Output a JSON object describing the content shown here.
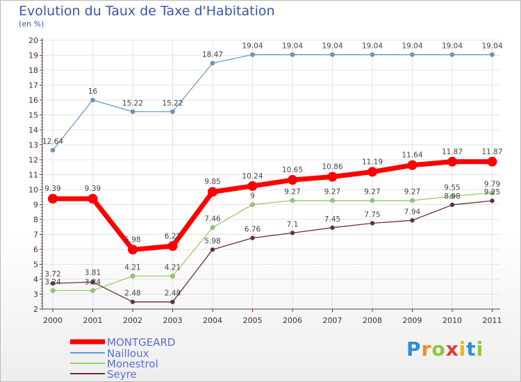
{
  "chart_data": {
    "type": "line",
    "title": "Evolution du Taux de Taxe d'Habitation",
    "ylabel": "(en %)",
    "xlabel": "",
    "x": [
      "2000",
      "2001",
      "2002",
      "2003",
      "2004",
      "2005",
      "2006",
      "2007",
      "2008",
      "2009",
      "2010",
      "2011"
    ],
    "ylim": [
      2,
      20
    ],
    "yticks": [
      2,
      3,
      4,
      5,
      6,
      7,
      8,
      9,
      10,
      11,
      12,
      13,
      14,
      15,
      16,
      17,
      18,
      19,
      20
    ],
    "legend_position": "bottom-left",
    "series": [
      {
        "name": "MONTGEARD",
        "color": "#ff0000",
        "values": [
          9.39,
          9.39,
          5.98,
          6.22,
          9.85,
          10.24,
          10.65,
          10.86,
          11.19,
          11.64,
          11.87,
          11.87
        ],
        "labels": [
          "9.39",
          "9.39",
          "5.98",
          "6.22",
          "9.85",
          "10.24",
          "10.65",
          "10.86",
          "11.19",
          "11.64",
          "11.87",
          "11.87"
        ]
      },
      {
        "name": "Nailloux",
        "color": "#6699cc",
        "values": [
          12.64,
          16,
          15.22,
          15.22,
          18.47,
          19.04,
          19.04,
          19.04,
          19.04,
          19.04,
          19.04,
          19.04
        ],
        "labels": [
          "12.64",
          "16",
          "15.22",
          "15.22",
          "18.47",
          "19.04",
          "19.04",
          "19.04",
          "19.04",
          "19.04",
          "19.04",
          "19.04"
        ]
      },
      {
        "name": "Monestrol",
        "color": "#99cc66",
        "values": [
          3.24,
          3.24,
          4.21,
          4.21,
          7.46,
          9,
          9.27,
          9.27,
          9.27,
          9.27,
          9.55,
          9.79
        ],
        "labels": [
          "3.24",
          "3.24",
          "4.21",
          "4.21",
          "7.46",
          "9",
          "9.27",
          "9.27",
          "9.27",
          "9.27",
          "9.55",
          "9.79"
        ]
      },
      {
        "name": "Seyre",
        "color": "#6b2d2d",
        "values": [
          3.72,
          3.81,
          2.48,
          2.48,
          5.98,
          6.76,
          7.1,
          7.45,
          7.75,
          7.94,
          8.98,
          9.25
        ],
        "labels": [
          "3.72",
          "3.81",
          "2.48",
          "2.48",
          "5.98",
          "6.76",
          "7.1",
          "7.45",
          "7.75",
          "7.94",
          "8.98",
          "9.25"
        ]
      }
    ]
  },
  "logo": {
    "text": "Proxiti",
    "letters": [
      "P",
      "r",
      "o",
      "x",
      "i",
      "t",
      "i"
    ],
    "colors": [
      "#2a8fd6",
      "#f08a1c",
      "#8cc63f",
      "#e53935",
      "#f5b800",
      "#2a8fd6",
      "#8cc63f"
    ]
  }
}
